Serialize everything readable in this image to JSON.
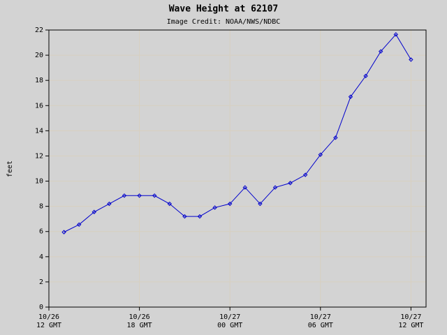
{
  "chart_data": {
    "type": "line",
    "title": "Wave Height at 62107",
    "subtitle": "Image Credit: NOAA/NWS/NDBC",
    "y_label": "feet",
    "categories": [
      "10/26\n12 GMT",
      null,
      null,
      null,
      null,
      null,
      "10/26\n18 GMT",
      null,
      null,
      null,
      null,
      null,
      "10/27\n00 GMT",
      null,
      null,
      null,
      null,
      null,
      "10/27\n06 GMT",
      null,
      null,
      null,
      null,
      null,
      "10/27\n12 GMT"
    ],
    "series": [
      {
        "name": "Wave Height",
        "color": "#0000cc",
        "values": [
          null,
          5.95,
          6.55,
          7.55,
          8.2,
          8.85,
          8.85,
          8.85,
          8.2,
          7.2,
          7.2,
          7.9,
          8.2,
          9.5,
          8.2,
          9.5,
          9.85,
          10.5,
          12.1,
          13.45,
          16.7,
          18.35,
          20.3,
          21.65,
          19.65
        ]
      }
    ],
    "ylim": [
      0,
      22
    ],
    "yticks": [
      0,
      2,
      4,
      6,
      8,
      10,
      12,
      14,
      16,
      18,
      20,
      22
    ],
    "grid": true
  }
}
